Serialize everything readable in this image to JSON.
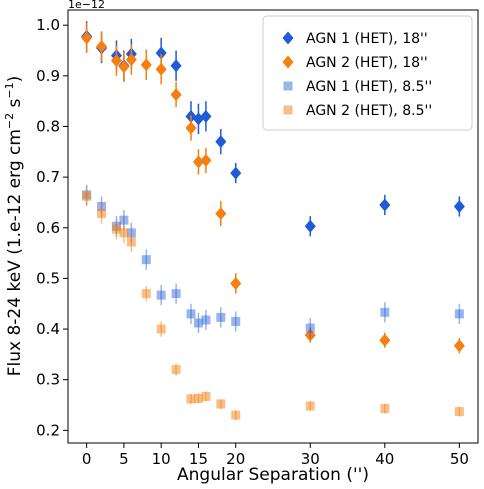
{
  "chart_data": {
    "type": "scatter",
    "xlabel": "Angular Separation ('')",
    "ylabel_main": "Flux 8-24 keV (1.e-12 erg cm",
    "ylabel_exp1": "−2",
    "ylabel_mid": " s",
    "ylabel_exp2": "−1",
    "ylabel_end": ")",
    "offset_label": "1e−12",
    "xlim": [
      -2.5,
      52.5
    ],
    "ylim": [
      0.175,
      1.03
    ],
    "xticks": [
      0,
      5,
      10,
      15,
      20,
      30,
      40,
      50
    ],
    "xtick_labels": [
      "0",
      "5",
      "10",
      "15",
      "20",
      "30",
      "40",
      "50"
    ],
    "yticks": [
      0.2,
      0.3,
      0.4,
      0.5,
      0.6,
      0.7,
      0.8,
      0.9,
      1.0
    ],
    "ytick_labels": [
      "0.2",
      "0.3",
      "0.4",
      "0.5",
      "0.6",
      "0.7",
      "0.8",
      "0.9",
      "1.0"
    ],
    "grid": false,
    "legend_position": "top-right",
    "series": [
      {
        "name": "AGN 1 (HET), 18''",
        "marker": "diamond",
        "color": "#1f5bd6",
        "opacity": 1,
        "points": [
          {
            "x": 0,
            "y": 0.978,
            "err": 0.03
          },
          {
            "x": 2,
            "y": 0.955,
            "err": 0.03
          },
          {
            "x": 4,
            "y": 0.94,
            "err": 0.03
          },
          {
            "x": 5,
            "y": 0.92,
            "err": 0.03
          },
          {
            "x": 6,
            "y": 0.943,
            "err": 0.03
          },
          {
            "x": 10,
            "y": 0.945,
            "err": 0.03
          },
          {
            "x": 12,
            "y": 0.92,
            "err": 0.03
          },
          {
            "x": 14,
            "y": 0.82,
            "err": 0.03
          },
          {
            "x": 15,
            "y": 0.815,
            "err": 0.03
          },
          {
            "x": 16,
            "y": 0.82,
            "err": 0.03
          },
          {
            "x": 18,
            "y": 0.77,
            "err": 0.025
          },
          {
            "x": 20,
            "y": 0.708,
            "err": 0.02
          },
          {
            "x": 30,
            "y": 0.603,
            "err": 0.02
          },
          {
            "x": 40,
            "y": 0.645,
            "err": 0.02
          },
          {
            "x": 50,
            "y": 0.642,
            "err": 0.02
          }
        ]
      },
      {
        "name": "AGN 2 (HET), 18''",
        "marker": "diamond",
        "color": "#f57f0f",
        "opacity": 1,
        "points": [
          {
            "x": 0,
            "y": 0.975,
            "err": 0.03
          },
          {
            "x": 2,
            "y": 0.958,
            "err": 0.03
          },
          {
            "x": 4,
            "y": 0.93,
            "err": 0.03
          },
          {
            "x": 5,
            "y": 0.918,
            "err": 0.03
          },
          {
            "x": 6,
            "y": 0.932,
            "err": 0.03
          },
          {
            "x": 8,
            "y": 0.922,
            "err": 0.03
          },
          {
            "x": 10,
            "y": 0.913,
            "err": 0.03
          },
          {
            "x": 12,
            "y": 0.863,
            "err": 0.025
          },
          {
            "x": 14,
            "y": 0.797,
            "err": 0.025
          },
          {
            "x": 15,
            "y": 0.73,
            "err": 0.025
          },
          {
            "x": 16,
            "y": 0.733,
            "err": 0.025
          },
          {
            "x": 18,
            "y": 0.628,
            "err": 0.025
          },
          {
            "x": 20,
            "y": 0.49,
            "err": 0.02
          },
          {
            "x": 30,
            "y": 0.388,
            "err": 0.015
          },
          {
            "x": 40,
            "y": 0.378,
            "err": 0.015
          },
          {
            "x": 50,
            "y": 0.367,
            "err": 0.015
          }
        ]
      },
      {
        "name": "AGN 1 (HET), 8.5''",
        "marker": "square",
        "color": "#1f5bd6",
        "opacity": 0.45,
        "points": [
          {
            "x": 0,
            "y": 0.665,
            "err": 0.02
          },
          {
            "x": 2,
            "y": 0.642,
            "err": 0.02
          },
          {
            "x": 4,
            "y": 0.603,
            "err": 0.02
          },
          {
            "x": 5,
            "y": 0.615,
            "err": 0.02
          },
          {
            "x": 6,
            "y": 0.59,
            "err": 0.02
          },
          {
            "x": 8,
            "y": 0.537,
            "err": 0.02
          },
          {
            "x": 10,
            "y": 0.467,
            "err": 0.02
          },
          {
            "x": 12,
            "y": 0.47,
            "err": 0.02
          },
          {
            "x": 14,
            "y": 0.43,
            "err": 0.02
          },
          {
            "x": 15,
            "y": 0.412,
            "err": 0.02
          },
          {
            "x": 16,
            "y": 0.418,
            "err": 0.02
          },
          {
            "x": 18,
            "y": 0.423,
            "err": 0.02
          },
          {
            "x": 20,
            "y": 0.415,
            "err": 0.02
          },
          {
            "x": 30,
            "y": 0.402,
            "err": 0.02
          },
          {
            "x": 40,
            "y": 0.433,
            "err": 0.02
          },
          {
            "x": 50,
            "y": 0.43,
            "err": 0.02
          }
        ]
      },
      {
        "name": "AGN 2 (HET), 8.5''",
        "marker": "square",
        "color": "#f57f0f",
        "opacity": 0.5,
        "points": [
          {
            "x": 0,
            "y": 0.662,
            "err": 0.02
          },
          {
            "x": 2,
            "y": 0.628,
            "err": 0.02
          },
          {
            "x": 4,
            "y": 0.597,
            "err": 0.02
          },
          {
            "x": 5,
            "y": 0.59,
            "err": 0.02
          },
          {
            "x": 6,
            "y": 0.572,
            "err": 0.02
          },
          {
            "x": 8,
            "y": 0.47,
            "err": 0.015
          },
          {
            "x": 10,
            "y": 0.4,
            "err": 0.015
          },
          {
            "x": 12,
            "y": 0.32,
            "err": 0.012
          },
          {
            "x": 14,
            "y": 0.262,
            "err": 0.01
          },
          {
            "x": 15,
            "y": 0.263,
            "err": 0.01
          },
          {
            "x": 16,
            "y": 0.267,
            "err": 0.01
          },
          {
            "x": 18,
            "y": 0.252,
            "err": 0.01
          },
          {
            "x": 20,
            "y": 0.23,
            "err": 0.01
          },
          {
            "x": 30,
            "y": 0.248,
            "err": 0.01
          },
          {
            "x": 40,
            "y": 0.243,
            "err": 0.01
          },
          {
            "x": 50,
            "y": 0.237,
            "err": 0.01
          }
        ]
      }
    ]
  }
}
